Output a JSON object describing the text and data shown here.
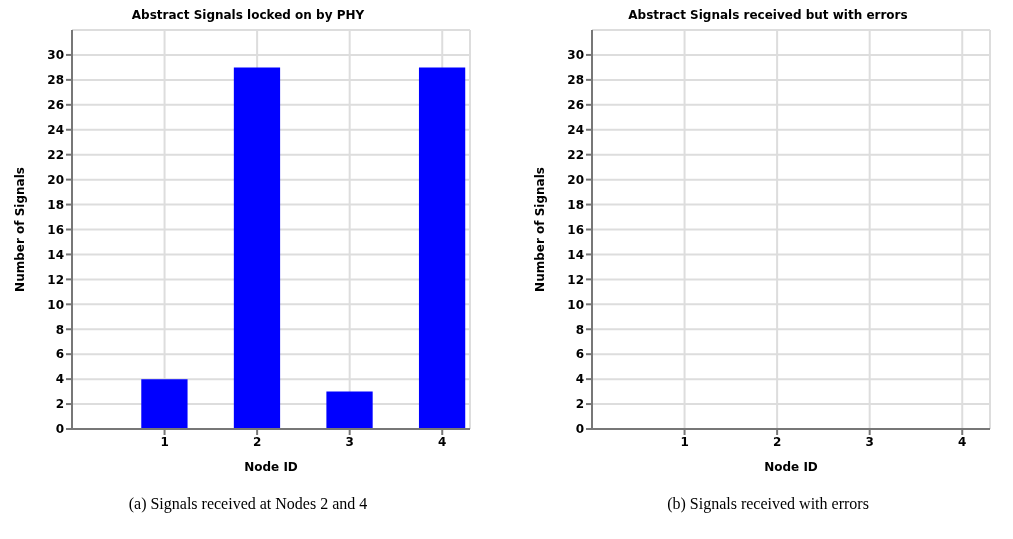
{
  "chart_data": [
    {
      "type": "bar",
      "title": "Abstract Signals locked on by PHY",
      "xlabel": "Node ID",
      "ylabel": "Number of Signals",
      "x": [
        1,
        2,
        3,
        4
      ],
      "values": [
        4,
        29,
        3,
        29
      ],
      "color": "#0000ff",
      "xlim": [
        0,
        4.3
      ],
      "xticks": [
        1,
        2,
        3,
        4
      ],
      "ylim": [
        0,
        32
      ],
      "yticks": [
        0,
        2,
        4,
        6,
        8,
        10,
        12,
        14,
        16,
        18,
        20,
        22,
        24,
        26,
        28,
        30
      ],
      "grid": true,
      "annotations": [
        "(a) Signals received at Nodes 2 and 4"
      ]
    },
    {
      "type": "bar",
      "title": "Abstract Signals received but with errors",
      "xlabel": "Node ID",
      "ylabel": "Number of Signals",
      "x": [
        1,
        2,
        3,
        4
      ],
      "values": [
        0,
        0,
        0,
        0
      ],
      "color": "#0000ff",
      "xlim": [
        0,
        4.3
      ],
      "xticks": [
        1,
        2,
        3,
        4
      ],
      "ylim": [
        0,
        32
      ],
      "yticks": [
        0,
        2,
        4,
        6,
        8,
        10,
        12,
        14,
        16,
        18,
        20,
        22,
        24,
        26,
        28,
        30
      ],
      "grid": true,
      "annotations": [
        "(b) Signals received with errors"
      ]
    }
  ]
}
